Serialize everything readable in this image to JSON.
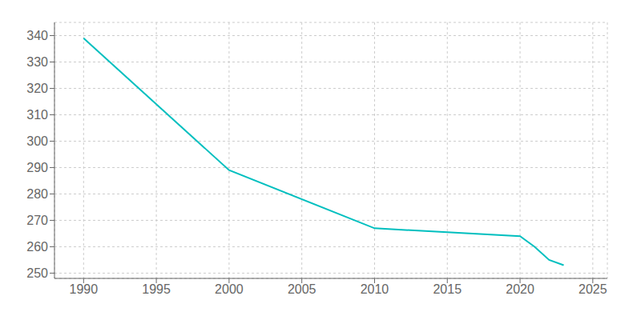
{
  "chart_data": {
    "type": "line",
    "x": [
      1990,
      2000,
      2010,
      2020,
      2021,
      2022,
      2023
    ],
    "values": [
      339,
      289,
      267,
      264,
      260,
      255,
      253
    ],
    "color": "#00BFBF",
    "xlim": [
      1988,
      2026
    ],
    "ylim": [
      248,
      345
    ],
    "xticks": [
      1990,
      1995,
      2000,
      2005,
      2010,
      2015,
      2020,
      2025
    ],
    "yticks": [
      250,
      260,
      270,
      280,
      290,
      300,
      310,
      320,
      330,
      340
    ],
    "grid": true
  }
}
